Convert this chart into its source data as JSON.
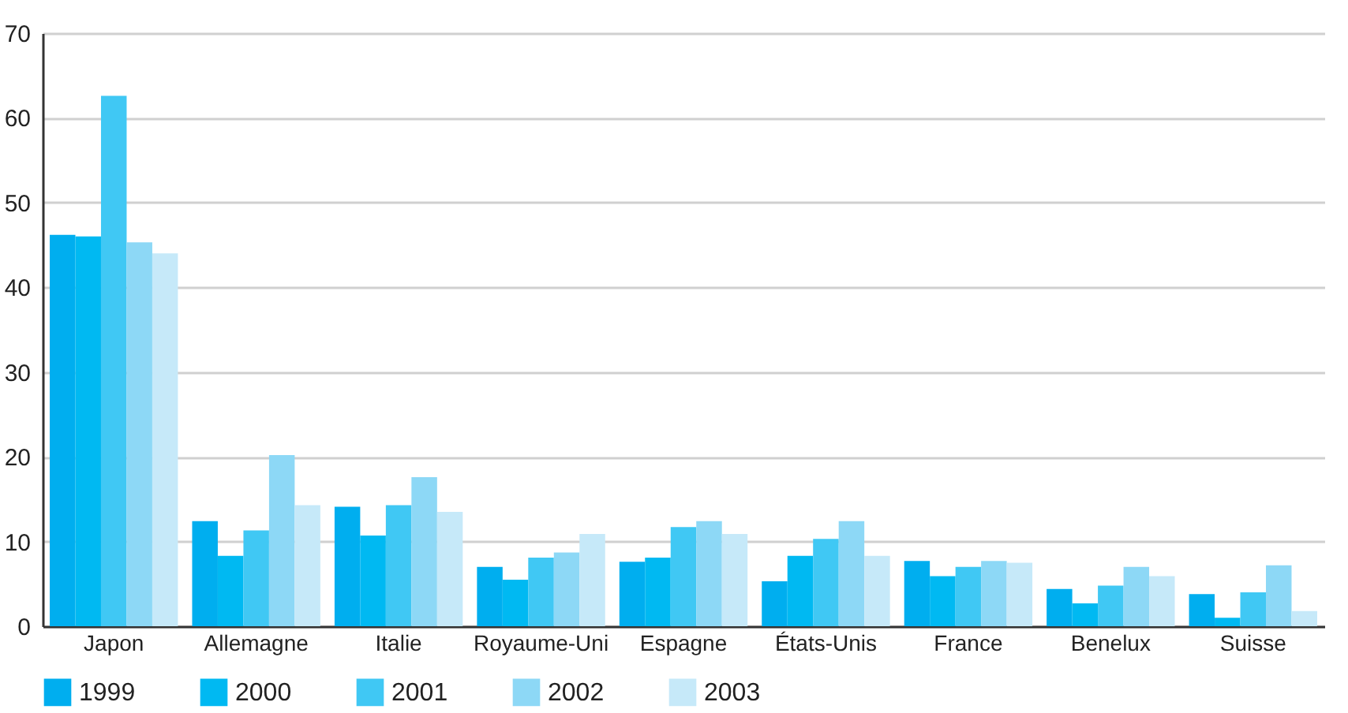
{
  "chart_data": {
    "type": "bar",
    "categories": [
      "Japon",
      "Allemagne",
      "Italie",
      "Royaume-Uni",
      "Espagne",
      "États-Unis",
      "France",
      "Benelux",
      "Suisse"
    ],
    "series": [
      {
        "name": "1999",
        "color": "#00aeef",
        "values": [
          46.2,
          12.4,
          14.1,
          7.0,
          7.6,
          5.3,
          7.7,
          4.4,
          3.8
        ]
      },
      {
        "name": "2000",
        "color": "#00b9f2",
        "values": [
          46.0,
          8.3,
          10.7,
          5.5,
          8.1,
          8.3,
          5.9,
          2.7,
          1.0
        ]
      },
      {
        "name": "2001",
        "color": "#40c8f4",
        "values": [
          62.6,
          11.3,
          14.3,
          8.1,
          11.7,
          10.3,
          7.0,
          4.8,
          4.0
        ]
      },
      {
        "name": "2002",
        "color": "#8dd8f6",
        "values": [
          45.3,
          20.2,
          17.6,
          8.7,
          12.4,
          12.4,
          7.7,
          7.0,
          7.2
        ]
      },
      {
        "name": "2003",
        "color": "#c6e9f9",
        "values": [
          44.0,
          14.3,
          13.5,
          10.9,
          10.9,
          8.3,
          7.5,
          5.9,
          1.8
        ]
      }
    ],
    "ylim": [
      0,
      70
    ],
    "yticks": [
      0,
      10,
      20,
      30,
      40,
      50,
      60,
      70
    ],
    "grid": "y",
    "legend": "bottom"
  }
}
